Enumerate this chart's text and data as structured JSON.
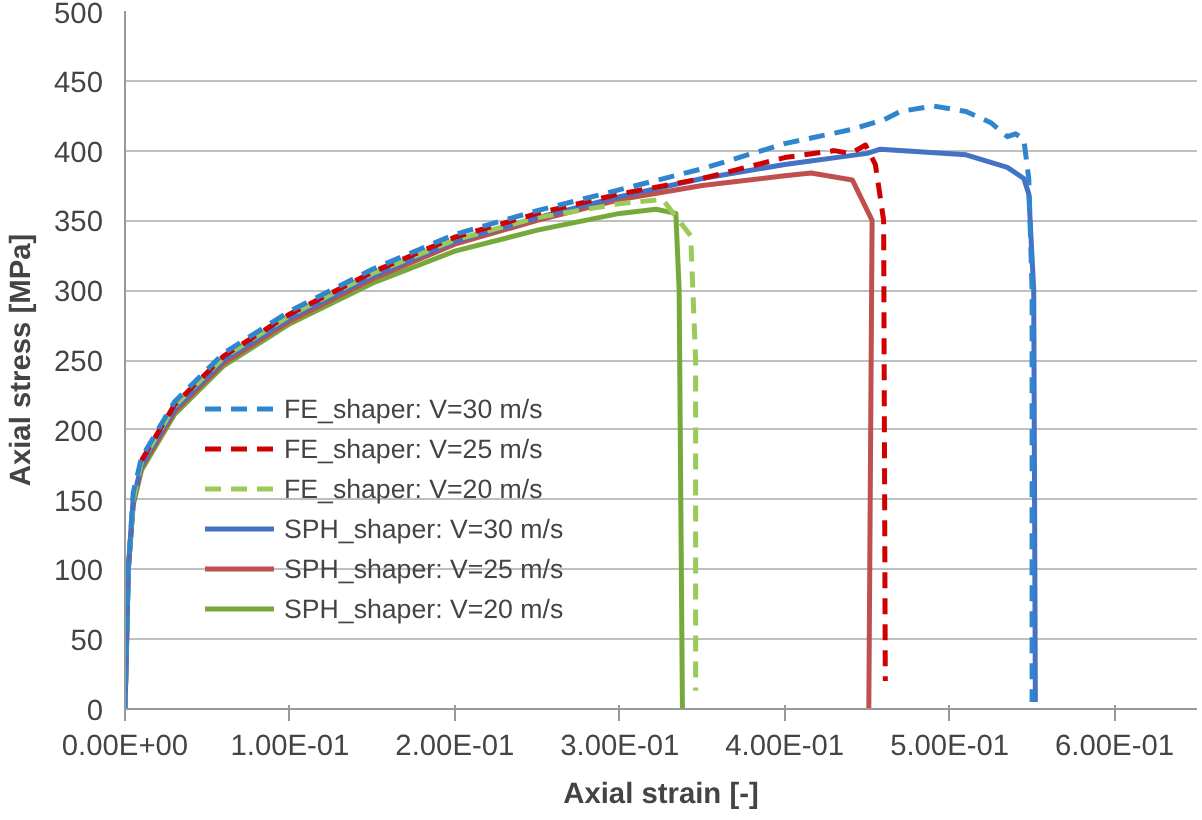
{
  "chart_data": {
    "type": "line",
    "xlabel": "Axial strain [-]",
    "ylabel": "Axial stress [MPa]",
    "xlim": [
      0,
      0.65
    ],
    "ylim": [
      0,
      500
    ],
    "xticks": [
      {
        "value": 0,
        "label": "0.00E+00"
      },
      {
        "value": 0.1,
        "label": "1.00E-01"
      },
      {
        "value": 0.2,
        "label": "2.00E-01"
      },
      {
        "value": 0.3,
        "label": "3.00E-01"
      },
      {
        "value": 0.4,
        "label": "4.00E-01"
      },
      {
        "value": 0.5,
        "label": "5.00E-01"
      },
      {
        "value": 0.6,
        "label": "6.00E-01"
      }
    ],
    "yticks": [
      0,
      50,
      100,
      150,
      200,
      250,
      300,
      350,
      400,
      450,
      500
    ],
    "grid": "y",
    "legend": "bottom left",
    "marker": "none",
    "series": [
      {
        "name": "FE_shaper: V=30 m/s",
        "color": "#2f86cf",
        "line_style": "dashed",
        "x": [
          0,
          0.002,
          0.005,
          0.01,
          0.03,
          0.06,
          0.1,
          0.15,
          0.2,
          0.25,
          0.3,
          0.35,
          0.4,
          0.44,
          0.46,
          0.47,
          0.49,
          0.51,
          0.525,
          0.535,
          0.54,
          0.545,
          0.548,
          0.55,
          0.55
        ],
        "values": [
          0,
          100,
          155,
          180,
          220,
          255,
          285,
          315,
          340,
          357,
          372,
          387,
          405,
          415,
          422,
          428,
          432,
          428,
          420,
          410,
          412,
          408,
          380,
          300,
          5
        ]
      },
      {
        "name": "FE_shaper: V=25 m/s",
        "color": "#d00000",
        "line_style": "dashed",
        "x": [
          0.01,
          0.03,
          0.06,
          0.1,
          0.15,
          0.2,
          0.25,
          0.3,
          0.35,
          0.4,
          0.43,
          0.44,
          0.449,
          0.455,
          0.46,
          0.461
        ],
        "values": [
          178,
          218,
          253,
          283,
          313,
          338,
          355,
          369,
          380,
          395,
          400,
          398,
          404,
          390,
          350,
          20
        ]
      },
      {
        "name": "FE_shaper: V=20 m/s",
        "color": "#9bc95a",
        "line_style": "dashed",
        "x": [
          0,
          0.002,
          0.005,
          0.01,
          0.03,
          0.06,
          0.1,
          0.15,
          0.2,
          0.25,
          0.3,
          0.326,
          0.343,
          0.346,
          0.346
        ],
        "values": [
          0,
          100,
          150,
          177,
          217,
          252,
          282,
          312,
          336,
          352,
          362,
          365,
          339,
          250,
          13
        ]
      },
      {
        "name": "SPH_shaper: V=30 m/s",
        "color": "#4472c4",
        "line_style": "solid",
        "x": [
          0,
          0.002,
          0.005,
          0.01,
          0.03,
          0.06,
          0.1,
          0.15,
          0.2,
          0.25,
          0.3,
          0.35,
          0.4,
          0.45,
          0.458,
          0.51,
          0.535,
          0.545,
          0.548,
          0.551,
          0.552
        ],
        "values": [
          0,
          100,
          150,
          175,
          215,
          250,
          280,
          310,
          335,
          352,
          367,
          380,
          390,
          398,
          401,
          397,
          388,
          380,
          369,
          300,
          5
        ]
      },
      {
        "name": "SPH_shaper: V=25 m/s",
        "color": "#c0504d",
        "line_style": "solid",
        "x": [
          0,
          0.002,
          0.005,
          0.01,
          0.03,
          0.06,
          0.1,
          0.15,
          0.2,
          0.25,
          0.3,
          0.35,
          0.4,
          0.416,
          0.441,
          0.453,
          0.451
        ],
        "values": [
          0,
          100,
          148,
          173,
          213,
          248,
          278,
          308,
          333,
          350,
          365,
          375,
          382,
          384,
          379,
          350,
          0
        ]
      },
      {
        "name": "SPH_shaper: V=20 m/s",
        "color": "#77a83c",
        "line_style": "solid",
        "x": [
          0,
          0.002,
          0.005,
          0.01,
          0.03,
          0.06,
          0.1,
          0.15,
          0.2,
          0.25,
          0.3,
          0.322,
          0.334,
          0.336,
          0.338
        ],
        "values": [
          0,
          100,
          146,
          171,
          211,
          246,
          276,
          305,
          328,
          343,
          355,
          358,
          355,
          300,
          0
        ]
      }
    ]
  }
}
